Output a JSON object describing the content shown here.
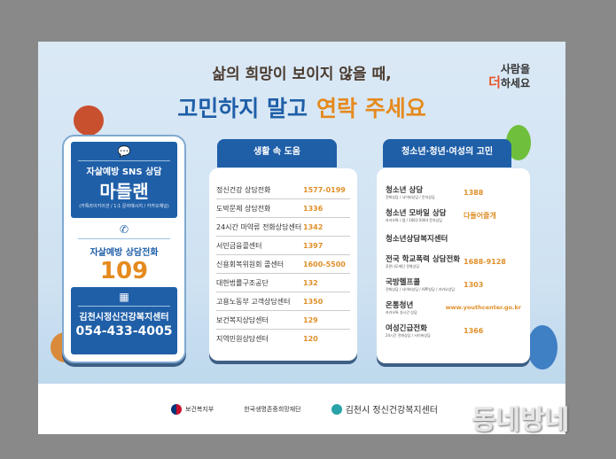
{
  "header": {
    "subtitle": "삶의 희망이 보이지 않을 때,",
    "title_blue": "고민하지 말고",
    "title_orange": "연락 주세요",
    "logo_line1": "사람을",
    "logo_accent": "더",
    "logo_line2": "하세요"
  },
  "left_card": {
    "sns": {
      "label": "자살예방 SNS 상담",
      "name": "마들랜",
      "note": "(카톡라이키이션 / 1:1 문자메시지 / 카카오채널)"
    },
    "hotline": {
      "label": "자살예방 상담전화",
      "number": "109"
    },
    "center": {
      "label": "김천시정신건강복지센터",
      "number": "054-433-4005"
    }
  },
  "middle_card": {
    "title": "생활 속 도움",
    "rows": [
      {
        "name": "정신건강 상담전화",
        "value": "1577-0199"
      },
      {
        "name": "도박문제 상담전화",
        "value": "1336"
      },
      {
        "name": "24시간 마약류 전화상담센터",
        "value": "1342"
      },
      {
        "name": "서민금융콜센터",
        "value": "1397"
      },
      {
        "name": "신용회복위원회 콜센터",
        "value": "1600-5500"
      },
      {
        "name": "대한법률구조공단",
        "value": "132"
      },
      {
        "name": "고용노동부 고객상담센터",
        "value": "1350"
      },
      {
        "name": "보건복지상담센터",
        "value": "129"
      },
      {
        "name": "지역민원상담센터",
        "value": "120"
      }
    ]
  },
  "right_card": {
    "title": "청소년·청년·여성의 고민",
    "rows": [
      {
        "name": "청소년 상담",
        "sub": "전화상담 / 사이버상담 / 문자상담",
        "value": "1388"
      },
      {
        "name": "청소년 모바일 상담",
        "sub": "카카오톡 / 앱 / 1661-5004 문자상담",
        "value": "다들어줄개"
      },
      {
        "name": "청소년상담복지센터",
        "sub": "",
        "value": ""
      },
      {
        "name": "전국 학교폭력 상담전화",
        "sub": "푸른나무재단 전화상담",
        "value": "1688-9128"
      },
      {
        "name": "국방헬프콜",
        "sub": "전화상담 / 사이버상담 / APP상담 / 카카오상담",
        "value": "1303"
      },
      {
        "name": "온통청년",
        "sub": "카카오톡 실시간 상담",
        "value": "www.youthcenter.go.kr"
      },
      {
        "name": "여성긴급전화",
        "sub": "24시간 전화상담 / 사이버상담",
        "value": "1366"
      }
    ]
  },
  "footer": {
    "org1": "보건복지부",
    "org2": "한국생명존중희망재단",
    "org3": "김천시 정신건강복지센터"
  },
  "watermark": "동네방네",
  "colors": {
    "blue": "#1f5fa8",
    "orange": "#e58a1e",
    "background": "#898989"
  }
}
